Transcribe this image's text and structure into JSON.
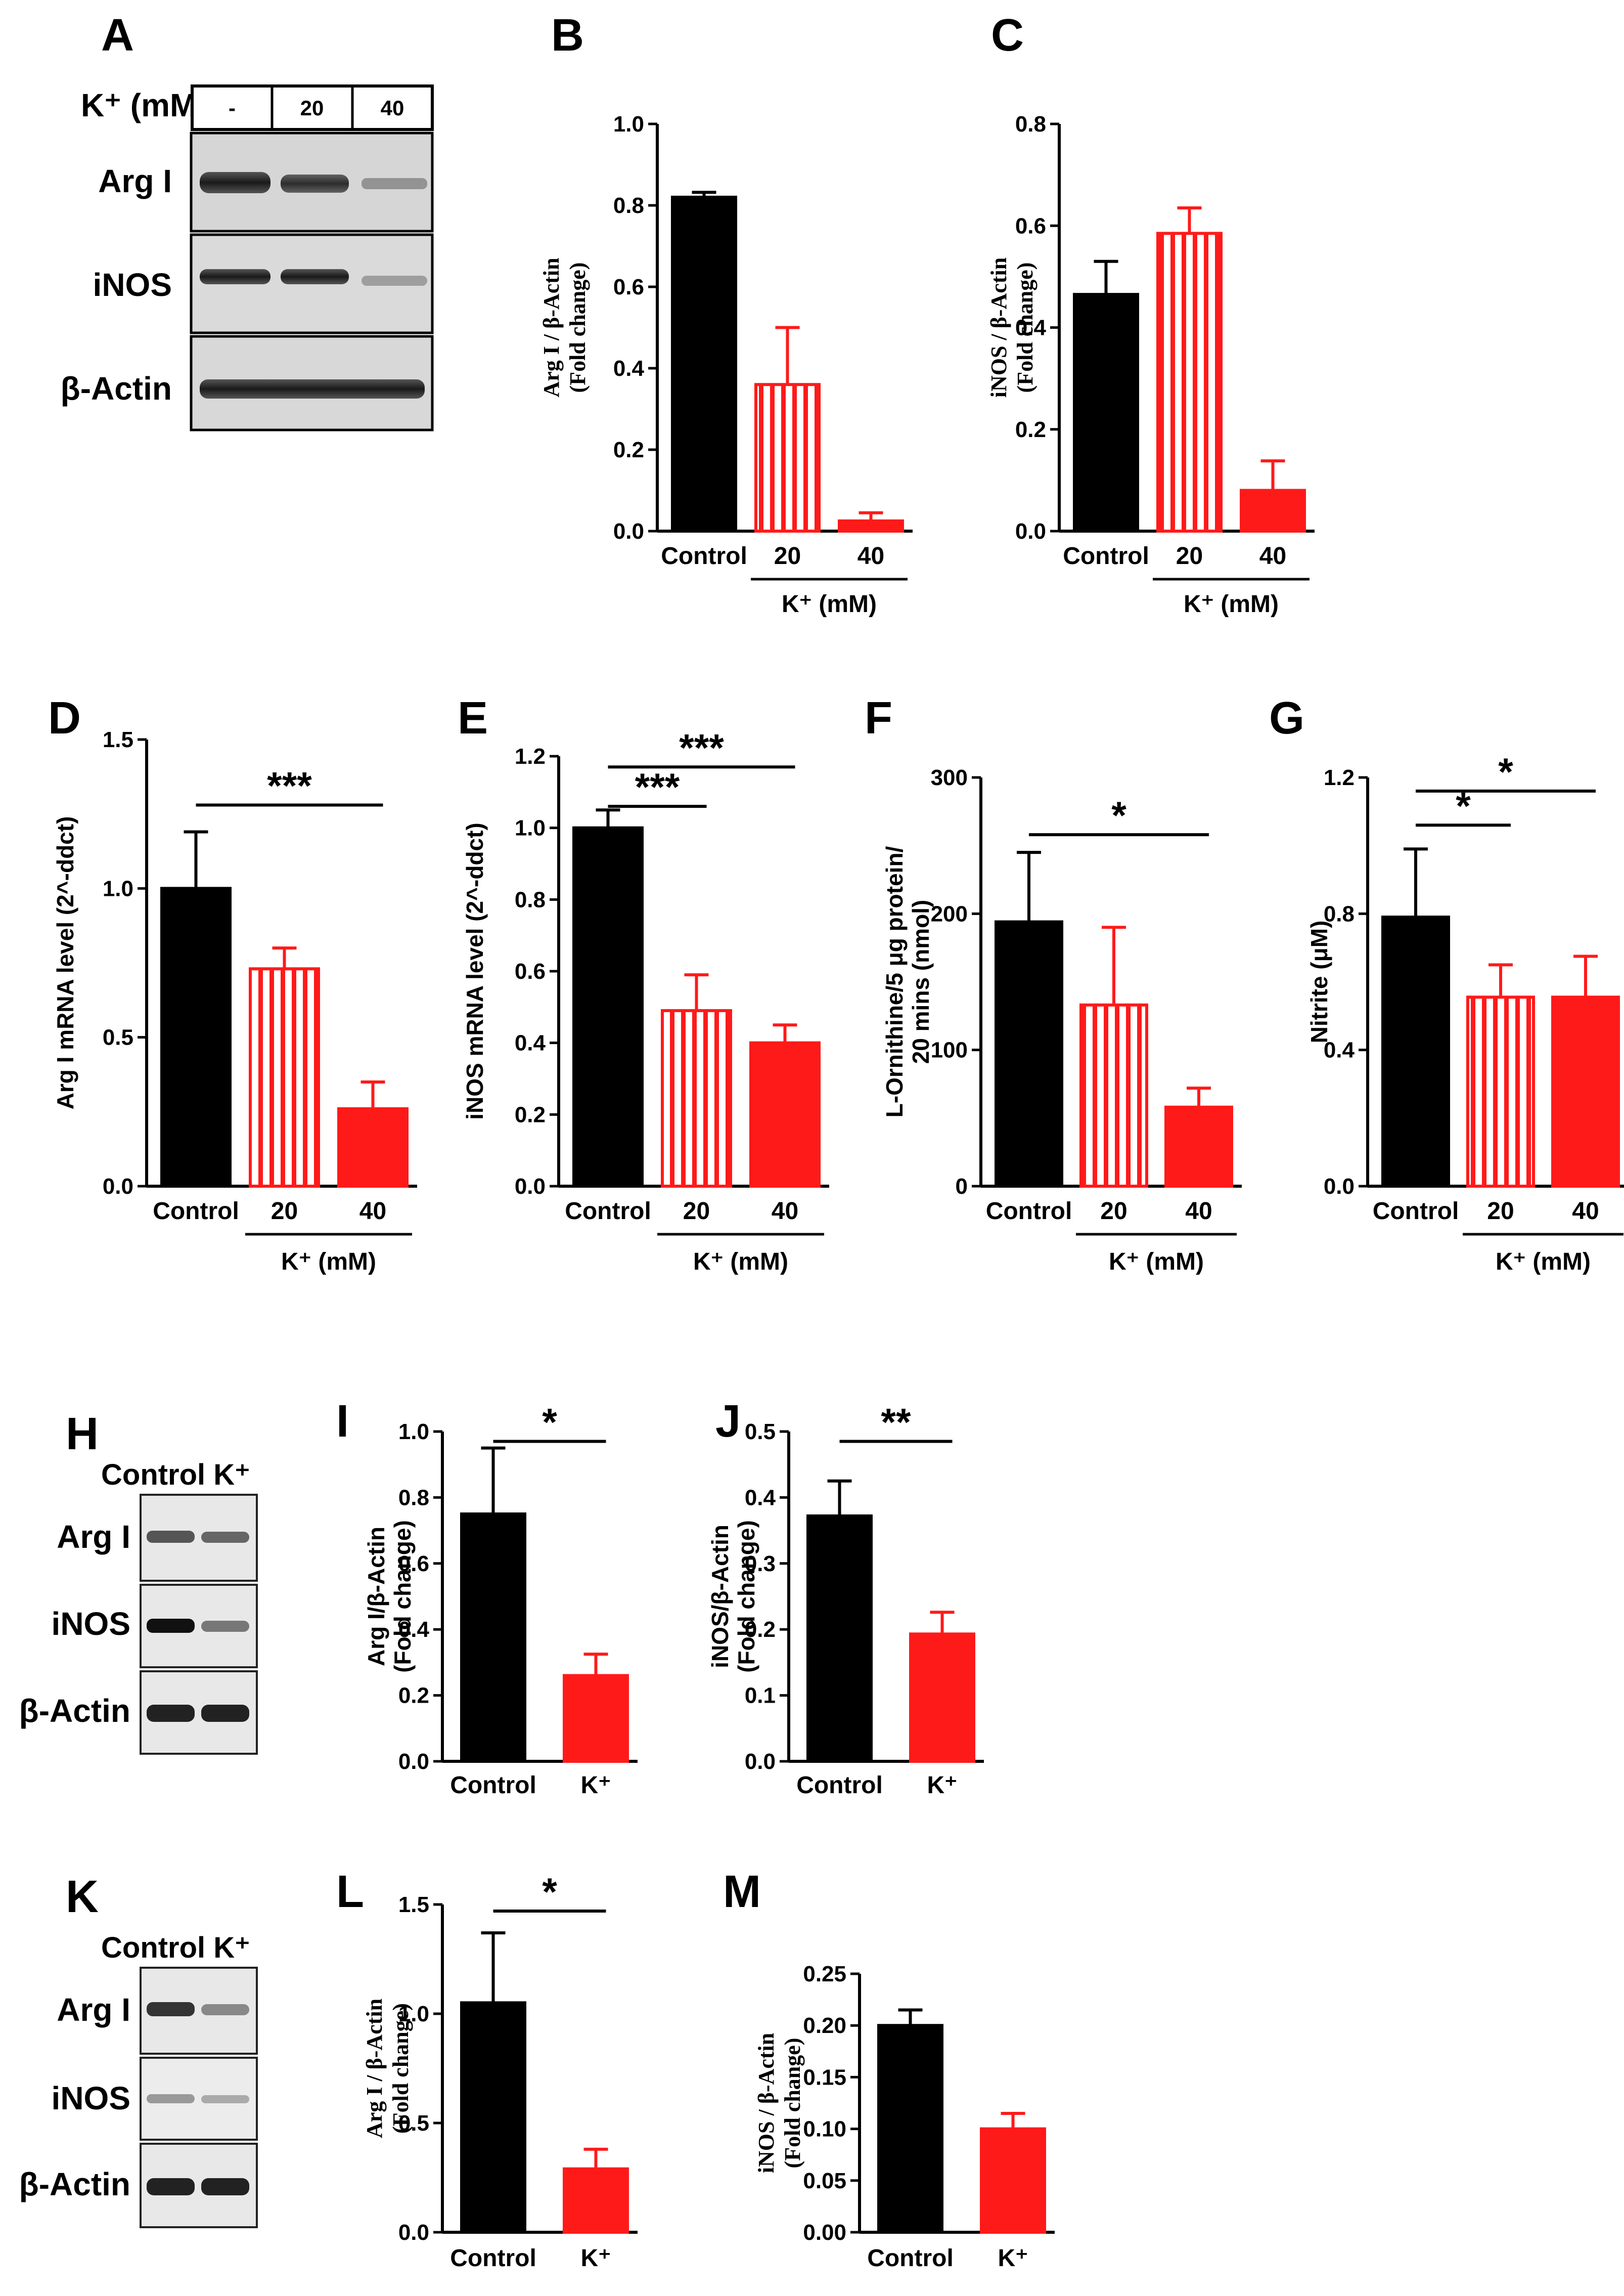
{
  "colors": {
    "control": "#000000",
    "treated": "#ff1a1a",
    "axis": "#000000"
  },
  "panels": {
    "A": {
      "letter": "A",
      "header_label": "K⁺ (mM)",
      "lanes": [
        "-",
        "20",
        "40"
      ],
      "rows": [
        "Arg I",
        "iNOS",
        "β-Actin"
      ]
    },
    "H": {
      "letter": "H",
      "header_label": "Control K⁺",
      "rows": [
        "Arg I",
        "iNOS",
        "β-Actin"
      ]
    },
    "K": {
      "letter": "K",
      "header_label": "Control K⁺",
      "rows": [
        "Arg I",
        "iNOS",
        "β-Actin"
      ]
    },
    "group_label": "K⁺ (mM)"
  },
  "chart_data": [
    {
      "id": "B",
      "letter": "B",
      "type": "bar",
      "categories": [
        "Control",
        "20",
        "40"
      ],
      "values": [
        0.82,
        0.36,
        0.025
      ],
      "errors": [
        0.012,
        0.14,
        0.02
      ],
      "styles": [
        "solid-black",
        "striped-red",
        "solid-red"
      ],
      "ylabel": [
        "Arg I / β-Actin",
        "(Fold change)"
      ],
      "ylim": [
        0,
        1.0
      ],
      "yticks": [
        "0.0",
        "0.2",
        "0.4",
        "0.6",
        "0.8",
        "1.0"
      ],
      "group_label": "K⁺ (mM)",
      "group_span": [
        1,
        2
      ],
      "significance": []
    },
    {
      "id": "C",
      "letter": "C",
      "type": "bar",
      "categories": [
        "Control",
        "20",
        "40"
      ],
      "values": [
        0.465,
        0.585,
        0.08
      ],
      "errors": [
        0.065,
        0.05,
        0.058
      ],
      "styles": [
        "solid-black",
        "striped-red",
        "solid-red"
      ],
      "ylabel": [
        "iNOS / β-Actin",
        "(Fold change)"
      ],
      "ylim": [
        0,
        0.8
      ],
      "yticks": [
        "0.0",
        "0.2",
        "0.4",
        "0.6",
        "0.8"
      ],
      "group_label": "K⁺ (mM)",
      "group_span": [
        1,
        2
      ],
      "significance": []
    },
    {
      "id": "D",
      "letter": "D",
      "type": "bar",
      "categories": [
        "Control",
        "20",
        "40"
      ],
      "values": [
        1.0,
        0.73,
        0.26
      ],
      "errors": [
        0.19,
        0.07,
        0.09
      ],
      "styles": [
        "solid-black",
        "striped-red",
        "solid-red"
      ],
      "ylabel": [
        "Arg I mRNA level  (2^-ddct)"
      ],
      "ylim": [
        0,
        1.5
      ],
      "yticks": [
        "0.0",
        "0.5",
        "1.0",
        "1.5"
      ],
      "group_label": "K⁺ (mM)",
      "group_span": [
        1,
        2
      ],
      "significance": [
        {
          "from": 0,
          "to": 2,
          "label": "***",
          "y": 1.28
        }
      ]
    },
    {
      "id": "E",
      "letter": "E",
      "type": "bar",
      "categories": [
        "Control",
        "20",
        "40"
      ],
      "values": [
        1.0,
        0.49,
        0.4
      ],
      "errors": [
        0.05,
        0.1,
        0.05
      ],
      "styles": [
        "solid-black",
        "striped-red",
        "solid-red"
      ],
      "ylabel": [
        "iNOS mRNA level  (2^-ddct)"
      ],
      "ylim": [
        0,
        1.2
      ],
      "yticks": [
        "0.0",
        "0.2",
        "0.4",
        "0.6",
        "0.8",
        "1.0",
        "1.2"
      ],
      "group_label": "K⁺ (mM)",
      "group_span": [
        1,
        2
      ],
      "significance": [
        {
          "from": 0,
          "to": 1,
          "label": "***",
          "y": 1.06
        },
        {
          "from": 0,
          "to": 2,
          "label": "***",
          "y": 1.17
        }
      ]
    },
    {
      "id": "F",
      "letter": "F",
      "type": "bar",
      "categories": [
        "Control",
        "20",
        "40"
      ],
      "values": [
        194,
        133,
        58
      ],
      "errors": [
        51,
        57,
        14
      ],
      "styles": [
        "solid-black",
        "striped-red",
        "solid-red"
      ],
      "ylabel": [
        "L-Ornithine/5  μg protein/",
        "20 mins (nmol)"
      ],
      "ylim": [
        0,
        300
      ],
      "yticks": [
        "0",
        "100",
        "200",
        "300"
      ],
      "group_label": "K⁺ (mM)",
      "group_span": [
        1,
        2
      ],
      "significance": [
        {
          "from": 0,
          "to": 2,
          "label": "*",
          "y": 258
        }
      ]
    },
    {
      "id": "G",
      "letter": "G",
      "type": "bar",
      "categories": [
        "Control",
        "20",
        "40"
      ],
      "values": [
        0.79,
        0.555,
        0.555
      ],
      "errors": [
        0.2,
        0.095,
        0.12
      ],
      "styles": [
        "solid-black",
        "striped-red",
        "solid-red"
      ],
      "ylabel": [
        "Nitrite (μM)"
      ],
      "ylim": [
        0,
        1.2
      ],
      "yticks": [
        "0.0",
        "0.4",
        "0.8",
        "1.2"
      ],
      "group_label": "K⁺ (mM)",
      "group_span": [
        1,
        2
      ],
      "significance": [
        {
          "from": 0,
          "to": 1,
          "label": "*",
          "y": 1.06
        },
        {
          "from": 0,
          "to": 2,
          "label": "*",
          "y": 1.16
        }
      ]
    },
    {
      "id": "I",
      "letter": "I",
      "type": "bar",
      "categories": [
        "Control",
        "K⁺"
      ],
      "values": [
        0.75,
        0.26
      ],
      "errors": [
        0.2,
        0.065
      ],
      "styles": [
        "solid-black",
        "solid-red"
      ],
      "ylabel": [
        "Arg I/β-Actin",
        "(Fold change)"
      ],
      "ylim": [
        0,
        1.0
      ],
      "yticks": [
        "0.0",
        "0.2",
        "0.4",
        "0.6",
        "0.8",
        "1.0"
      ],
      "significance": [
        {
          "from": 0,
          "to": 1,
          "label": "*",
          "y": 0.97
        }
      ]
    },
    {
      "id": "J",
      "letter": "J",
      "type": "bar",
      "categories": [
        "Control",
        "K⁺"
      ],
      "values": [
        0.372,
        0.193
      ],
      "errors": [
        0.053,
        0.033
      ],
      "styles": [
        "solid-black",
        "solid-red"
      ],
      "ylabel": [
        "iNOS/β-Actin",
        "(Fold change)"
      ],
      "ylim": [
        0,
        0.5
      ],
      "yticks": [
        "0.0",
        "0.1",
        "0.2",
        "0.3",
        "0.4",
        "0.5"
      ],
      "significance": [
        {
          "from": 0,
          "to": 1,
          "label": "**",
          "y": 0.485
        }
      ]
    },
    {
      "id": "L",
      "letter": "L",
      "type": "bar",
      "categories": [
        "Control",
        "K⁺"
      ],
      "values": [
        1.05,
        0.29
      ],
      "errors": [
        0.32,
        0.09
      ],
      "styles": [
        "solid-black",
        "solid-red"
      ],
      "ylabel": [
        "Arg I / β-Actin",
        "(Fold change)"
      ],
      "ylim": [
        0,
        1.5
      ],
      "yticks": [
        "0.0",
        "0.5",
        "1.0",
        "1.5"
      ],
      "significance": [
        {
          "from": 0,
          "to": 1,
          "label": "*",
          "y": 1.47
        }
      ]
    },
    {
      "id": "M",
      "letter": "M",
      "type": "bar",
      "categories": [
        "Control",
        "K⁺"
      ],
      "values": [
        0.2,
        0.1
      ],
      "errors": [
        0.015,
        0.015
      ],
      "styles": [
        "solid-black",
        "solid-red"
      ],
      "ylabel": [
        "iNOS / β-Actin",
        "(Fold change)"
      ],
      "ylim": [
        0,
        0.25
      ],
      "yticks": [
        "0.00",
        "0.05",
        "0.10",
        "0.15",
        "0.20",
        "0.25"
      ],
      "significance": []
    }
  ]
}
